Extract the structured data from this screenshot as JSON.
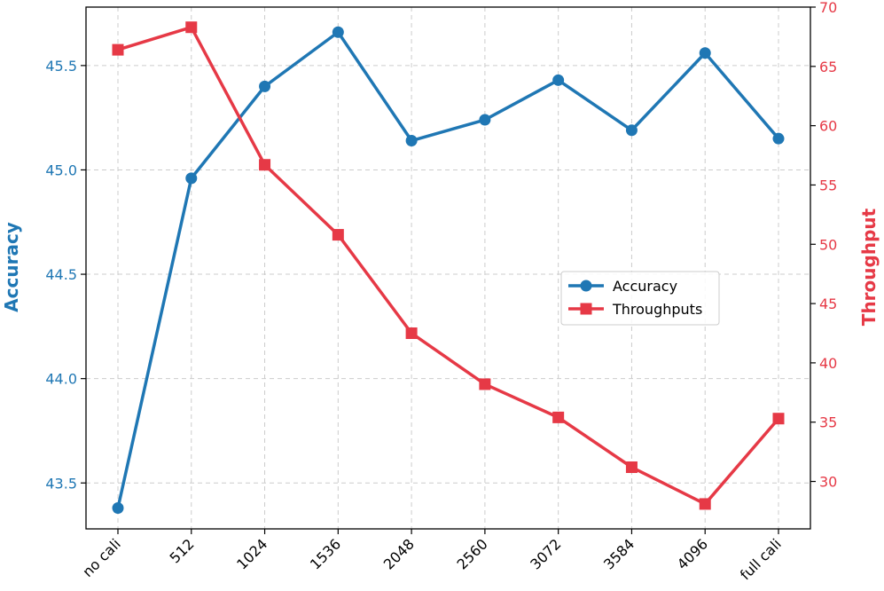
{
  "chart_data": {
    "type": "line",
    "categories": [
      "no cali",
      "512",
      "1024",
      "1536",
      "2048",
      "2560",
      "3072",
      "3584",
      "4096",
      "full cali"
    ],
    "series": [
      {
        "name": "Accuracy",
        "axis": "left",
        "marker": "circle",
        "color": "#1f77b4",
        "values": [
          43.38,
          44.96,
          45.4,
          45.66,
          45.14,
          45.24,
          45.43,
          45.19,
          45.56,
          45.15
        ]
      },
      {
        "name": "Throughputs",
        "axis": "right",
        "marker": "square",
        "color": "#e63946",
        "values": [
          66.4,
          68.3,
          56.7,
          50.8,
          42.5,
          38.2,
          35.4,
          31.2,
          28.1,
          35.3
        ]
      }
    ],
    "ylabel_left": "Accuracy",
    "ylabel_right": "Throughput",
    "ylim_left": [
      43.28,
      45.78
    ],
    "ylim_right": [
      26.0,
      70.0
    ],
    "yticks_left": [
      43.5,
      44.0,
      44.5,
      45.0,
      45.5
    ],
    "yticks_left_labels": [
      "43.5",
      "44.0",
      "44.5",
      "45.0",
      "45.5"
    ],
    "yticks_right": [
      30,
      35,
      40,
      45,
      50,
      55,
      60,
      65,
      70
    ],
    "yticks_right_labels": [
      "30",
      "35",
      "40",
      "45",
      "50",
      "55",
      "60",
      "65",
      "70"
    ],
    "grid": true,
    "legend_position": "center-right"
  }
}
